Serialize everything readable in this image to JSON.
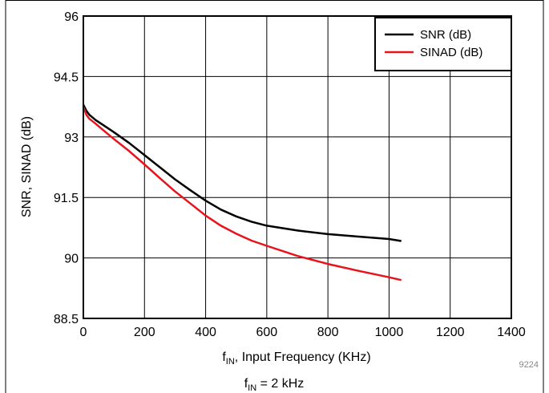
{
  "chart_data": {
    "type": "line",
    "xlabel_main": "f",
    "xlabel_sub": "IN",
    "xlabel_rest": ", Input Frequency (KHz)",
    "ylabel": "SNR, SINAD (dB)",
    "xlim": [
      0,
      1400
    ],
    "ylim": [
      88.5,
      96
    ],
    "xticks": [
      "0",
      "200",
      "400",
      "600",
      "800",
      "1000",
      "1200",
      "1400"
    ],
    "yticks": [
      "88.5",
      "90",
      "91.5",
      "93",
      "94.5",
      "96"
    ],
    "grid": true,
    "legend_position": "top-right",
    "series": [
      {
        "name": "SNR (dB)",
        "color": "#000000",
        "x": [
          0,
          10,
          20,
          40,
          60,
          100,
          150,
          200,
          250,
          300,
          350,
          400,
          450,
          500,
          550,
          600,
          700,
          800,
          900,
          1000,
          1040
        ],
        "y": [
          93.8,
          93.65,
          93.55,
          93.42,
          93.32,
          93.12,
          92.85,
          92.55,
          92.25,
          91.95,
          91.68,
          91.42,
          91.2,
          91.03,
          90.9,
          90.8,
          90.68,
          90.59,
          90.53,
          90.47,
          90.42
        ]
      },
      {
        "name": "SINAD (dB)",
        "color": "#e8131b",
        "x": [
          0,
          10,
          20,
          40,
          60,
          100,
          150,
          200,
          250,
          300,
          350,
          400,
          450,
          500,
          550,
          600,
          700,
          800,
          900,
          1000,
          1040
        ],
        "y": [
          93.75,
          93.55,
          93.45,
          93.33,
          93.2,
          92.95,
          92.65,
          92.32,
          91.98,
          91.65,
          91.35,
          91.05,
          90.8,
          90.6,
          90.43,
          90.3,
          90.05,
          89.85,
          89.68,
          89.52,
          89.45
        ]
      }
    ],
    "annotation_code": "9224",
    "footer_main": "f",
    "footer_sub": "IN",
    "footer_rest": " = 2 kHz"
  }
}
